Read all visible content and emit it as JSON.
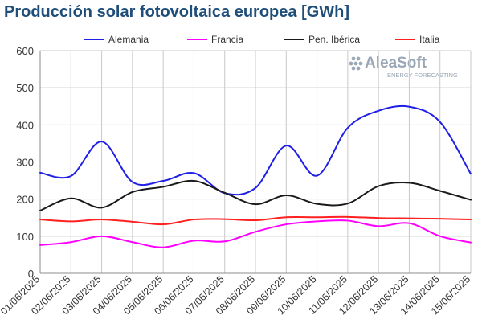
{
  "title": "Producción solar fotovoltaica europea [GWh]",
  "logo": {
    "name": "AleaSoft",
    "tagline": "ENERGY FORECASTING",
    "color": "#9aa7b6"
  },
  "chart_data": {
    "type": "line",
    "title": "Producción solar fotovoltaica europea [GWh]",
    "xlabel": "",
    "ylabel": "",
    "ylim": [
      0,
      600
    ],
    "yticks": [
      0,
      100,
      200,
      300,
      400,
      500,
      600
    ],
    "grid": true,
    "legend_position": "top",
    "x": [
      "01/06/2025",
      "02/06/2025",
      "03/06/2025",
      "04/06/2025",
      "05/06/2025",
      "06/06/2025",
      "07/06/2025",
      "08/06/2025",
      "09/06/2025",
      "10/06/2025",
      "11/06/2025",
      "12/06/2025",
      "13/06/2025",
      "14/06/2025",
      "15/06/2025"
    ],
    "series": [
      {
        "name": "Alemania",
        "color": "#1f1fe6",
        "values": [
          271,
          262,
          355,
          246,
          249,
          270,
          216,
          230,
          344,
          263,
          392,
          438,
          449,
          408,
          268
        ]
      },
      {
        "name": "Francia",
        "color": "#ff00ff",
        "values": [
          76,
          84,
          100,
          84,
          70,
          88,
          86,
          112,
          132,
          140,
          142,
          127,
          135,
          100,
          83
        ]
      },
      {
        "name": "Pen. Ibérica",
        "color": "#1a1a1a",
        "values": [
          169,
          202,
          177,
          219,
          233,
          249,
          217,
          186,
          210,
          187,
          188,
          235,
          244,
          222,
          198
        ]
      },
      {
        "name": "Italia",
        "color": "#ff2020",
        "values": [
          145,
          140,
          145,
          139,
          132,
          145,
          146,
          143,
          151,
          151,
          152,
          149,
          148,
          147,
          145
        ]
      }
    ]
  }
}
